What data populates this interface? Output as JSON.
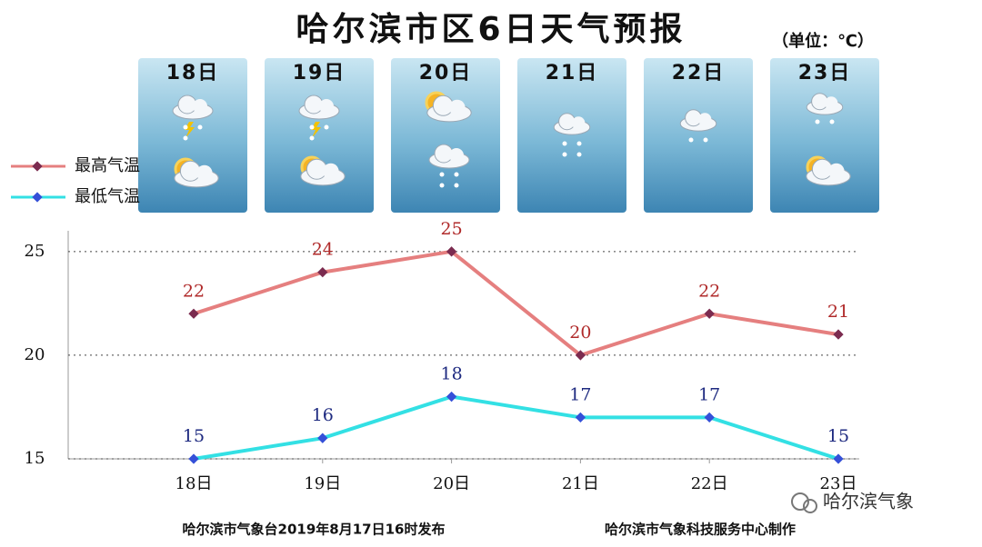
{
  "chart_data": {
    "type": "line",
    "title": "哈尔滨市区6日天气预报",
    "subtitle": "（单位：℃）",
    "categories": [
      "18日",
      "19日",
      "20日",
      "21日",
      "22日",
      "23日"
    ],
    "series": [
      {
        "name": "最高气温",
        "color": "#e57f7f",
        "marker_color": "#7b2b4f",
        "label_color": "#b02a2a",
        "values": [
          22,
          24,
          25,
          20,
          22,
          21
        ]
      },
      {
        "name": "最低气温",
        "color": "#33e0e4",
        "marker_color": "#3550d8",
        "label_color": "#1e2a80",
        "values": [
          15,
          16,
          18,
          17,
          17,
          15
        ]
      }
    ],
    "ylim": [
      15,
      26
    ],
    "yticks": [
      15,
      20,
      25
    ],
    "grid": true,
    "legend": "left",
    "footer_left": "哈尔滨市气象台2019年8月17日16时发布",
    "footer_right": "哈尔滨市气象科技服务中心制作",
    "watermark": "哈尔滨气象"
  }
}
